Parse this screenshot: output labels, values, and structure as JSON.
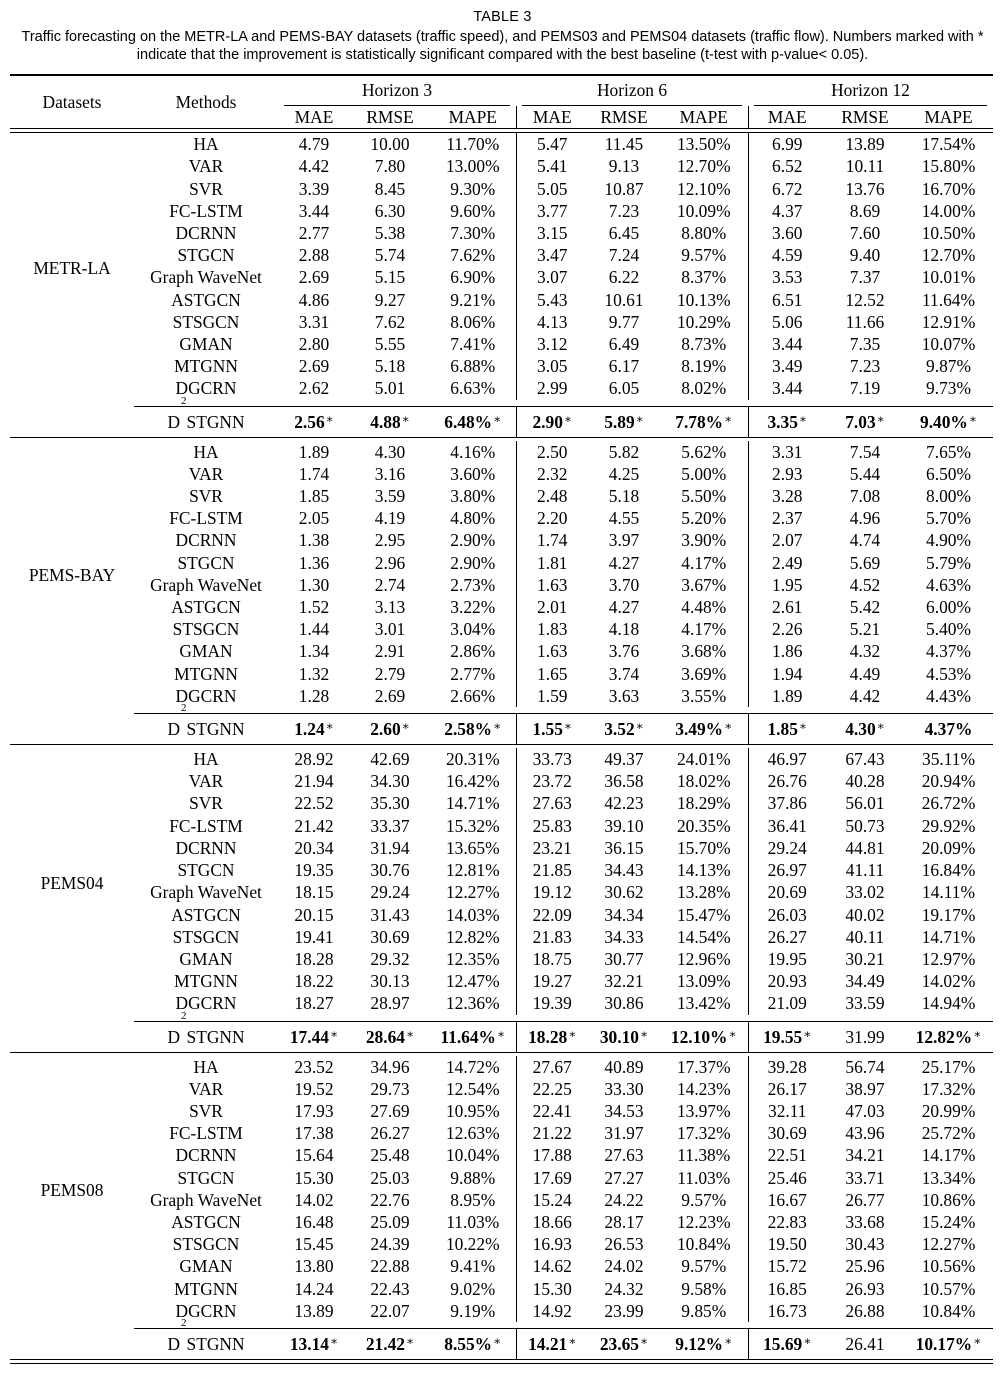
{
  "caption": {
    "label": "TABLE 3",
    "text": "Traffic forecasting on the METR-LA and PEMS-BAY datasets (traffic speed), and PEMS03 and PEMS04 datasets (traffic flow). Numbers marked with * indicate that the improvement is statistically significant compared with the best baseline (t-test with p-value< 0.05)."
  },
  "header": {
    "datasets": "Datasets",
    "methods": "Methods",
    "horizons": [
      "Horizon 3",
      "Horizon 6",
      "Horizon 12"
    ],
    "metrics": [
      "MAE",
      "RMSE",
      "MAPE"
    ]
  },
  "blocks": [
    {
      "dataset": "METR-LA",
      "rows": [
        {
          "method": "HA",
          "values": [
            "4.79",
            "10.00",
            "11.70%",
            "5.47",
            "11.45",
            "13.50%",
            "6.99",
            "13.89",
            "17.54%"
          ]
        },
        {
          "method": "VAR",
          "values": [
            "4.42",
            "7.80",
            "13.00%",
            "5.41",
            "9.13",
            "12.70%",
            "6.52",
            "10.11",
            "15.80%"
          ]
        },
        {
          "method": "SVR",
          "values": [
            "3.39",
            "8.45",
            "9.30%",
            "5.05",
            "10.87",
            "12.10%",
            "6.72",
            "13.76",
            "16.70%"
          ]
        },
        {
          "method": "FC-LSTM",
          "values": [
            "3.44",
            "6.30",
            "9.60%",
            "3.77",
            "7.23",
            "10.09%",
            "4.37",
            "8.69",
            "14.00%"
          ]
        },
        {
          "method": "DCRNN",
          "values": [
            "2.77",
            "5.38",
            "7.30%",
            "3.15",
            "6.45",
            "8.80%",
            "3.60",
            "7.60",
            "10.50%"
          ]
        },
        {
          "method": "STGCN",
          "values": [
            "2.88",
            "5.74",
            "7.62%",
            "3.47",
            "7.24",
            "9.57%",
            "4.59",
            "9.40",
            "12.70%"
          ]
        },
        {
          "method": "Graph WaveNet",
          "values": [
            "2.69",
            "5.15",
            "6.90%",
            "3.07",
            "6.22",
            "8.37%",
            "3.53",
            "7.37",
            "10.01%"
          ]
        },
        {
          "method": "ASTGCN",
          "values": [
            "4.86",
            "9.27",
            "9.21%",
            "5.43",
            "10.61",
            "10.13%",
            "6.51",
            "12.52",
            "11.64%"
          ]
        },
        {
          "method": "STSGCN",
          "values": [
            "3.31",
            "7.62",
            "8.06%",
            "4.13",
            "9.77",
            "10.29%",
            "5.06",
            "11.66",
            "12.91%"
          ]
        },
        {
          "method": "GMAN",
          "values": [
            "2.80",
            "5.55",
            "7.41%",
            "3.12",
            "6.49",
            "8.73%",
            "3.44",
            "7.35",
            "10.07%"
          ]
        },
        {
          "method": "MTGNN",
          "values": [
            "2.69",
            "5.18",
            "6.88%",
            "3.05",
            "6.17",
            "8.19%",
            "3.49",
            "7.23",
            "9.87%"
          ]
        },
        {
          "method": "DGCRN",
          "values": [
            "2.62",
            "5.01",
            "6.63%",
            "2.99",
            "6.05",
            "8.02%",
            "3.44",
            "7.19",
            "9.73%"
          ]
        }
      ],
      "ours": {
        "method_prefix": "D",
        "method_sup": "2",
        "method_suffix": "STGNN",
        "values": [
          "2.56",
          "4.88",
          "6.48%",
          "2.90",
          "5.89",
          "7.78%",
          "3.35",
          "7.03",
          "9.40%"
        ],
        "bold": [
          true,
          true,
          true,
          true,
          true,
          true,
          true,
          true,
          true
        ],
        "star": [
          true,
          true,
          true,
          true,
          true,
          true,
          true,
          true,
          true
        ]
      }
    },
    {
      "dataset": "PEMS-BAY",
      "rows": [
        {
          "method": "HA",
          "values": [
            "1.89",
            "4.30",
            "4.16%",
            "2.50",
            "5.82",
            "5.62%",
            "3.31",
            "7.54",
            "7.65%"
          ]
        },
        {
          "method": "VAR",
          "values": [
            "1.74",
            "3.16",
            "3.60%",
            "2.32",
            "4.25",
            "5.00%",
            "2.93",
            "5.44",
            "6.50%"
          ]
        },
        {
          "method": "SVR",
          "values": [
            "1.85",
            "3.59",
            "3.80%",
            "2.48",
            "5.18",
            "5.50%",
            "3.28",
            "7.08",
            "8.00%"
          ]
        },
        {
          "method": "FC-LSTM",
          "values": [
            "2.05",
            "4.19",
            "4.80%",
            "2.20",
            "4.55",
            "5.20%",
            "2.37",
            "4.96",
            "5.70%"
          ]
        },
        {
          "method": "DCRNN",
          "values": [
            "1.38",
            "2.95",
            "2.90%",
            "1.74",
            "3.97",
            "3.90%",
            "2.07",
            "4.74",
            "4.90%"
          ]
        },
        {
          "method": "STGCN",
          "values": [
            "1.36",
            "2.96",
            "2.90%",
            "1.81",
            "4.27",
            "4.17%",
            "2.49",
            "5.69",
            "5.79%"
          ]
        },
        {
          "method": "Graph WaveNet",
          "values": [
            "1.30",
            "2.74",
            "2.73%",
            "1.63",
            "3.70",
            "3.67%",
            "1.95",
            "4.52",
            "4.63%"
          ]
        },
        {
          "method": "ASTGCN",
          "values": [
            "1.52",
            "3.13",
            "3.22%",
            "2.01",
            "4.27",
            "4.48%",
            "2.61",
            "5.42",
            "6.00%"
          ]
        },
        {
          "method": "STSGCN",
          "values": [
            "1.44",
            "3.01",
            "3.04%",
            "1.83",
            "4.18",
            "4.17%",
            "2.26",
            "5.21",
            "5.40%"
          ]
        },
        {
          "method": "GMAN",
          "values": [
            "1.34",
            "2.91",
            "2.86%",
            "1.63",
            "3.76",
            "3.68%",
            "1.86",
            "4.32",
            "4.37%"
          ],
          "bold_index": [
            8
          ]
        },
        {
          "method": "MTGNN",
          "values": [
            "1.32",
            "2.79",
            "2.77%",
            "1.65",
            "3.74",
            "3.69%",
            "1.94",
            "4.49",
            "4.53%"
          ]
        },
        {
          "method": "DGCRN",
          "values": [
            "1.28",
            "2.69",
            "2.66%",
            "1.59",
            "3.63",
            "3.55%",
            "1.89",
            "4.42",
            "4.43%"
          ]
        }
      ],
      "ours": {
        "method_prefix": "D",
        "method_sup": "2",
        "method_suffix": "STGNN",
        "values": [
          "1.24",
          "2.60",
          "2.58%",
          "1.55",
          "3.52",
          "3.49%",
          "1.85",
          "4.30",
          "4.37%"
        ],
        "bold": [
          true,
          true,
          true,
          true,
          true,
          true,
          true,
          true,
          true
        ],
        "star": [
          true,
          true,
          true,
          true,
          true,
          true,
          true,
          true,
          false
        ]
      }
    },
    {
      "dataset": "PEMS04",
      "rows": [
        {
          "method": "HA",
          "values": [
            "28.92",
            "42.69",
            "20.31%",
            "33.73",
            "49.37",
            "24.01%",
            "46.97",
            "67.43",
            "35.11%"
          ]
        },
        {
          "method": "VAR",
          "values": [
            "21.94",
            "34.30",
            "16.42%",
            "23.72",
            "36.58",
            "18.02%",
            "26.76",
            "40.28",
            "20.94%"
          ]
        },
        {
          "method": "SVR",
          "values": [
            "22.52",
            "35.30",
            "14.71%",
            "27.63",
            "42.23",
            "18.29%",
            "37.86",
            "56.01",
            "26.72%"
          ]
        },
        {
          "method": "FC-LSTM",
          "values": [
            "21.42",
            "33.37",
            "15.32%",
            "25.83",
            "39.10",
            "20.35%",
            "36.41",
            "50.73",
            "29.92%"
          ]
        },
        {
          "method": "DCRNN",
          "values": [
            "20.34",
            "31.94",
            "13.65%",
            "23.21",
            "36.15",
            "15.70%",
            "29.24",
            "44.81",
            "20.09%"
          ]
        },
        {
          "method": "STGCN",
          "values": [
            "19.35",
            "30.76",
            "12.81%",
            "21.85",
            "34.43",
            "14.13%",
            "26.97",
            "41.11",
            "16.84%"
          ]
        },
        {
          "method": "Graph WaveNet",
          "values": [
            "18.15",
            "29.24",
            "12.27%",
            "19.12",
            "30.62",
            "13.28%",
            "20.69",
            "33.02",
            "14.11%"
          ]
        },
        {
          "method": "ASTGCN",
          "values": [
            "20.15",
            "31.43",
            "14.03%",
            "22.09",
            "34.34",
            "15.47%",
            "26.03",
            "40.02",
            "19.17%"
          ]
        },
        {
          "method": "STSGCN",
          "values": [
            "19.41",
            "30.69",
            "12.82%",
            "21.83",
            "34.33",
            "14.54%",
            "26.27",
            "40.11",
            "14.71%"
          ]
        },
        {
          "method": "GMAN",
          "values": [
            "18.28",
            "29.32",
            "12.35%",
            "18.75",
            "30.77",
            "12.96%",
            "19.95",
            "30.21",
            "12.97%"
          ],
          "bold_index": [
            7
          ]
        },
        {
          "method": "MTGNN",
          "values": [
            "18.22",
            "30.13",
            "12.47%",
            "19.27",
            "32.21",
            "13.09%",
            "20.93",
            "34.49",
            "14.02%"
          ]
        },
        {
          "method": "DGCRN",
          "values": [
            "18.27",
            "28.97",
            "12.36%",
            "19.39",
            "30.86",
            "13.42%",
            "21.09",
            "33.59",
            "14.94%"
          ]
        }
      ],
      "ours": {
        "method_prefix": "D",
        "method_sup": "2",
        "method_suffix": "STGNN",
        "values": [
          "17.44",
          "28.64",
          "11.64%",
          "18.28",
          "30.10",
          "12.10%",
          "19.55",
          "31.99",
          "12.82%"
        ],
        "bold": [
          true,
          true,
          true,
          true,
          true,
          true,
          true,
          false,
          true
        ],
        "star": [
          true,
          true,
          true,
          true,
          true,
          true,
          true,
          false,
          true
        ]
      }
    },
    {
      "dataset": "PEMS08",
      "rows": [
        {
          "method": "HA",
          "values": [
            "23.52",
            "34.96",
            "14.72%",
            "27.67",
            "40.89",
            "17.37%",
            "39.28",
            "56.74",
            "25.17%"
          ]
        },
        {
          "method": "VAR",
          "values": [
            "19.52",
            "29.73",
            "12.54%",
            "22.25",
            "33.30",
            "14.23%",
            "26.17",
            "38.97",
            "17.32%"
          ]
        },
        {
          "method": "SVR",
          "values": [
            "17.93",
            "27.69",
            "10.95%",
            "22.41",
            "34.53",
            "13.97%",
            "32.11",
            "47.03",
            "20.99%"
          ]
        },
        {
          "method": "FC-LSTM",
          "values": [
            "17.38",
            "26.27",
            "12.63%",
            "21.22",
            "31.97",
            "17.32%",
            "30.69",
            "43.96",
            "25.72%"
          ]
        },
        {
          "method": "DCRNN",
          "values": [
            "15.64",
            "25.48",
            "10.04%",
            "17.88",
            "27.63",
            "11.38%",
            "22.51",
            "34.21",
            "14.17%"
          ]
        },
        {
          "method": "STGCN",
          "values": [
            "15.30",
            "25.03",
            "9.88%",
            "17.69",
            "27.27",
            "11.03%",
            "25.46",
            "33.71",
            "13.34%"
          ]
        },
        {
          "method": "Graph WaveNet",
          "values": [
            "14.02",
            "22.76",
            "8.95%",
            "15.24",
            "24.22",
            "9.57%",
            "16.67",
            "26.77",
            "10.86%"
          ]
        },
        {
          "method": "ASTGCN",
          "values": [
            "16.48",
            "25.09",
            "11.03%",
            "18.66",
            "28.17",
            "12.23%",
            "22.83",
            "33.68",
            "15.24%"
          ]
        },
        {
          "method": "STSGCN",
          "values": [
            "15.45",
            "24.39",
            "10.22%",
            "16.93",
            "26.53",
            "10.84%",
            "19.50",
            "30.43",
            "12.27%"
          ]
        },
        {
          "method": "GMAN",
          "values": [
            "13.80",
            "22.88",
            "9.41%",
            "14.62",
            "24.02",
            "9.57%",
            "15.72",
            "25.96",
            "10.56%"
          ],
          "bold_index": [
            7
          ]
        },
        {
          "method": "MTGNN",
          "values": [
            "14.24",
            "22.43",
            "9.02%",
            "15.30",
            "24.32",
            "9.58%",
            "16.85",
            "26.93",
            "10.57%"
          ]
        },
        {
          "method": "DGCRN",
          "values": [
            "13.89",
            "22.07",
            "9.19%",
            "14.92",
            "23.99",
            "9.85%",
            "16.73",
            "26.88",
            "10.84%"
          ]
        }
      ],
      "ours": {
        "method_prefix": "D",
        "method_sup": "2",
        "method_suffix": "STGNN",
        "values": [
          "13.14",
          "21.42",
          "8.55%",
          "14.21",
          "23.65",
          "9.12%",
          "15.69",
          "26.41",
          "10.17%"
        ],
        "bold": [
          true,
          true,
          true,
          true,
          true,
          true,
          true,
          false,
          true
        ],
        "star": [
          true,
          true,
          true,
          true,
          true,
          true,
          true,
          false,
          true
        ]
      }
    }
  ]
}
